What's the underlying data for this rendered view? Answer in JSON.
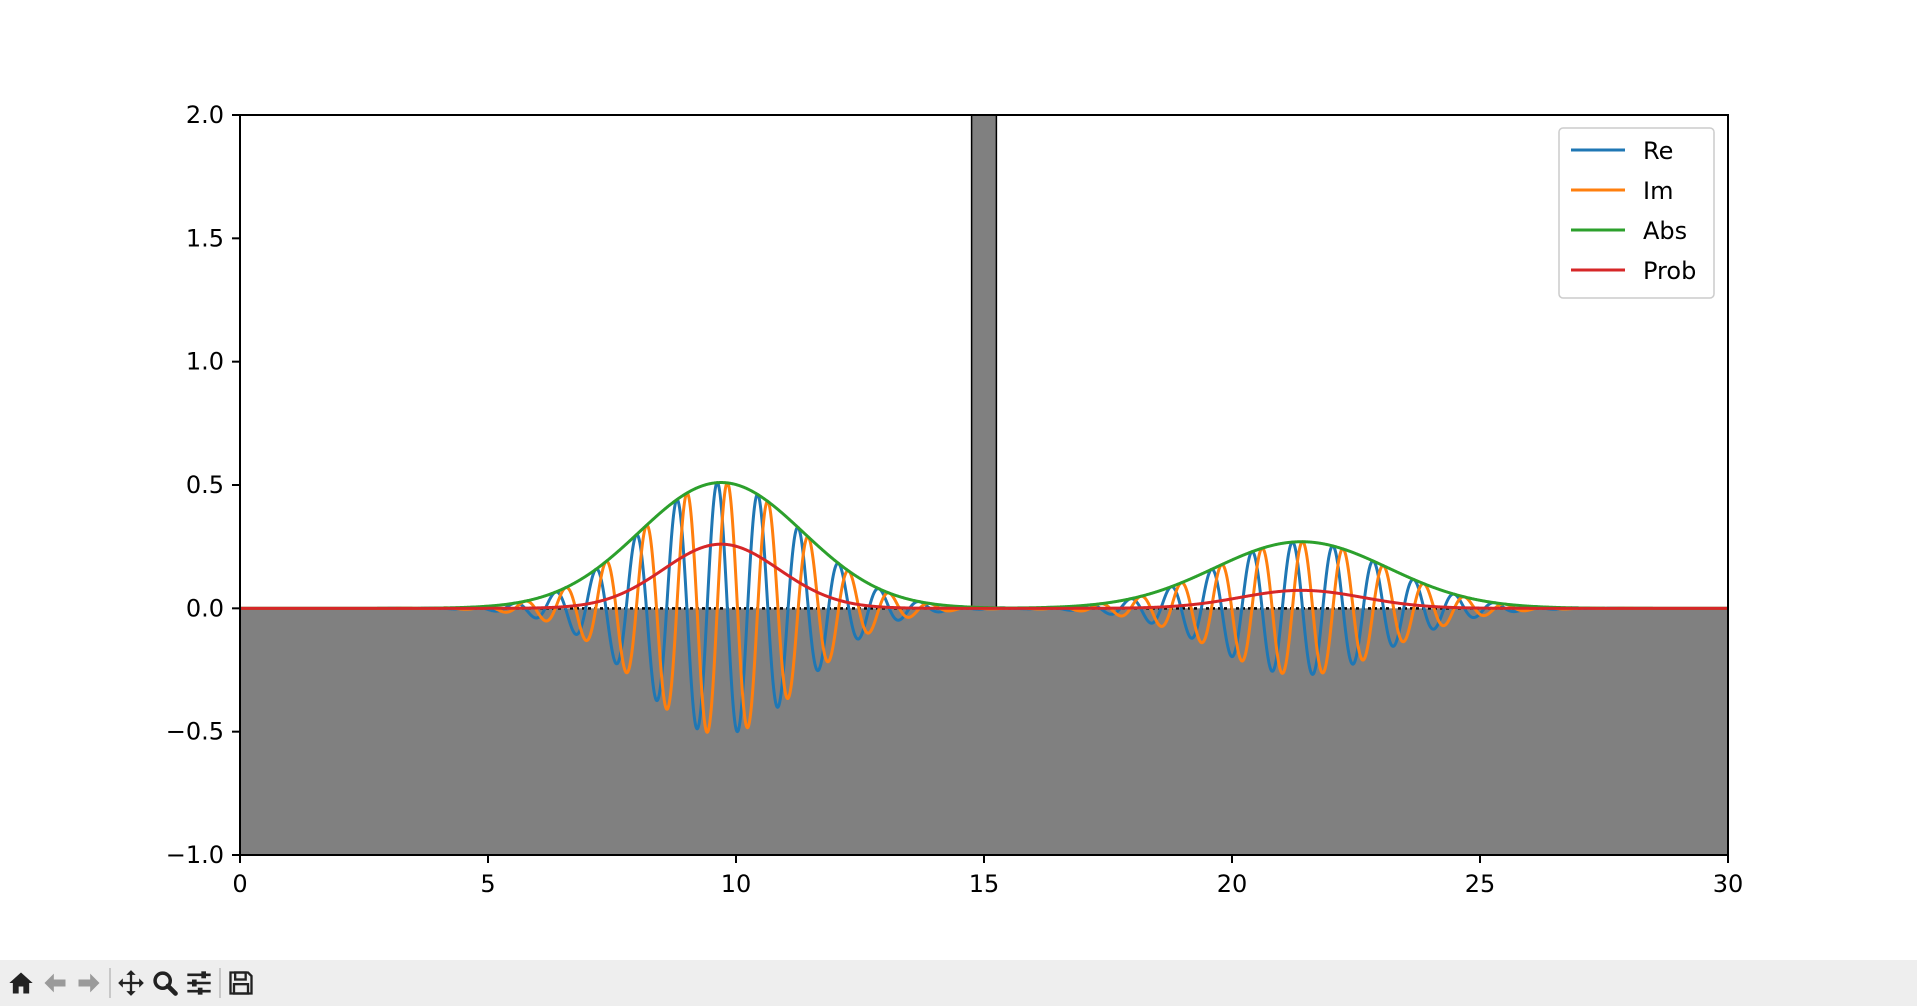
{
  "chart_data": {
    "type": "line",
    "title": "",
    "xlabel": "",
    "ylabel": "",
    "xlim": [
      0,
      30
    ],
    "ylim": [
      -1.0,
      2.0
    ],
    "xticks": [
      0,
      5,
      10,
      15,
      20,
      25,
      30
    ],
    "xtick_labels": [
      "0",
      "5",
      "10",
      "15",
      "20",
      "25",
      "30"
    ],
    "yticks": [
      -1.0,
      -0.5,
      0.0,
      0.5,
      1.0,
      1.5,
      2.0
    ],
    "ytick_labels": [
      "−1.0",
      "−0.5",
      "0.0",
      "0.5",
      "1.0",
      "1.5",
      "2.0"
    ],
    "grid": false,
    "legend_position": "top-right",
    "potential": {
      "color": "#808080",
      "baseline_fill_to": -1.0,
      "barrier": {
        "x_start": 14.75,
        "x_end": 15.25,
        "height": 2.0
      }
    },
    "wave_packets": [
      {
        "center": 9.7,
        "amplitude": 0.51,
        "width": 1.65,
        "wavenumber": 7.7,
        "phase": 0.6
      },
      {
        "center": 21.4,
        "amplitude": 0.27,
        "width": 1.75,
        "wavenumber": 7.7,
        "phase": 1.4
      }
    ],
    "series": [
      {
        "name": "Re",
        "color": "#1f77b4",
        "kind": "real"
      },
      {
        "name": "Im",
        "color": "#ff7f0e",
        "kind": "imag"
      },
      {
        "name": "Abs",
        "color": "#2ca02c",
        "kind": "abs"
      },
      {
        "name": "Prob",
        "color": "#d62728",
        "kind": "prob"
      }
    ]
  },
  "toolbar": {
    "buttons": [
      {
        "name": "home-icon",
        "title": "Home"
      },
      {
        "name": "back-icon",
        "title": "Back"
      },
      {
        "name": "forward-icon",
        "title": "Forward"
      },
      {
        "name": "pan-icon",
        "title": "Pan"
      },
      {
        "name": "zoom-icon",
        "title": "Zoom"
      },
      {
        "name": "configure-subplots-icon",
        "title": "Configure subplots"
      },
      {
        "name": "save-icon",
        "title": "Save"
      }
    ],
    "message": ""
  }
}
